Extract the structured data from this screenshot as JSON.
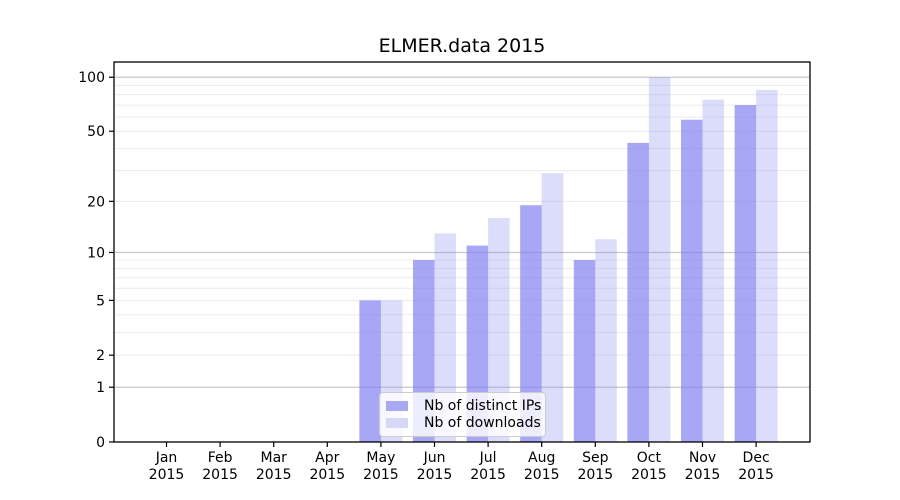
{
  "title": "ELMER.data 2015",
  "chart_data": {
    "type": "bar",
    "title": "ELMER.data 2015",
    "categories": [
      "Jan",
      "Feb",
      "Mar",
      "Apr",
      "May",
      "Jun",
      "Jul",
      "Aug",
      "Sep",
      "Oct",
      "Nov",
      "Dec"
    ],
    "x_year_label": "2015",
    "series": [
      {
        "name": "Nb of distinct IPs",
        "values": [
          0,
          0,
          0,
          0,
          5,
          9,
          11,
          19,
          9,
          43,
          58,
          70
        ],
        "color": "rgba(124,124,240,0.67)",
        "swatch_color": "#a7a9f2"
      },
      {
        "name": "Nb of downloads",
        "values": [
          0,
          0,
          0,
          0,
          5,
          13,
          16,
          29,
          12,
          100,
          75,
          85
        ],
        "color": "rgba(124,124,240,0.27)",
        "swatch_color": "#d7d8f7"
      }
    ],
    "yticks": [
      0,
      1,
      2,
      5,
      10,
      20,
      50,
      100
    ],
    "yscale": "log(1+v)",
    "ylim": [
      0,
      123
    ],
    "grid": "horizontal log minor gridlines, darker lines at 1/10/100",
    "legend_position": "lower center",
    "colors": {
      "grid_minor": "#ececec",
      "grid_major": "#c8c8c8",
      "axis": "#000000",
      "text": "#000000",
      "background": "#ffffff"
    }
  }
}
